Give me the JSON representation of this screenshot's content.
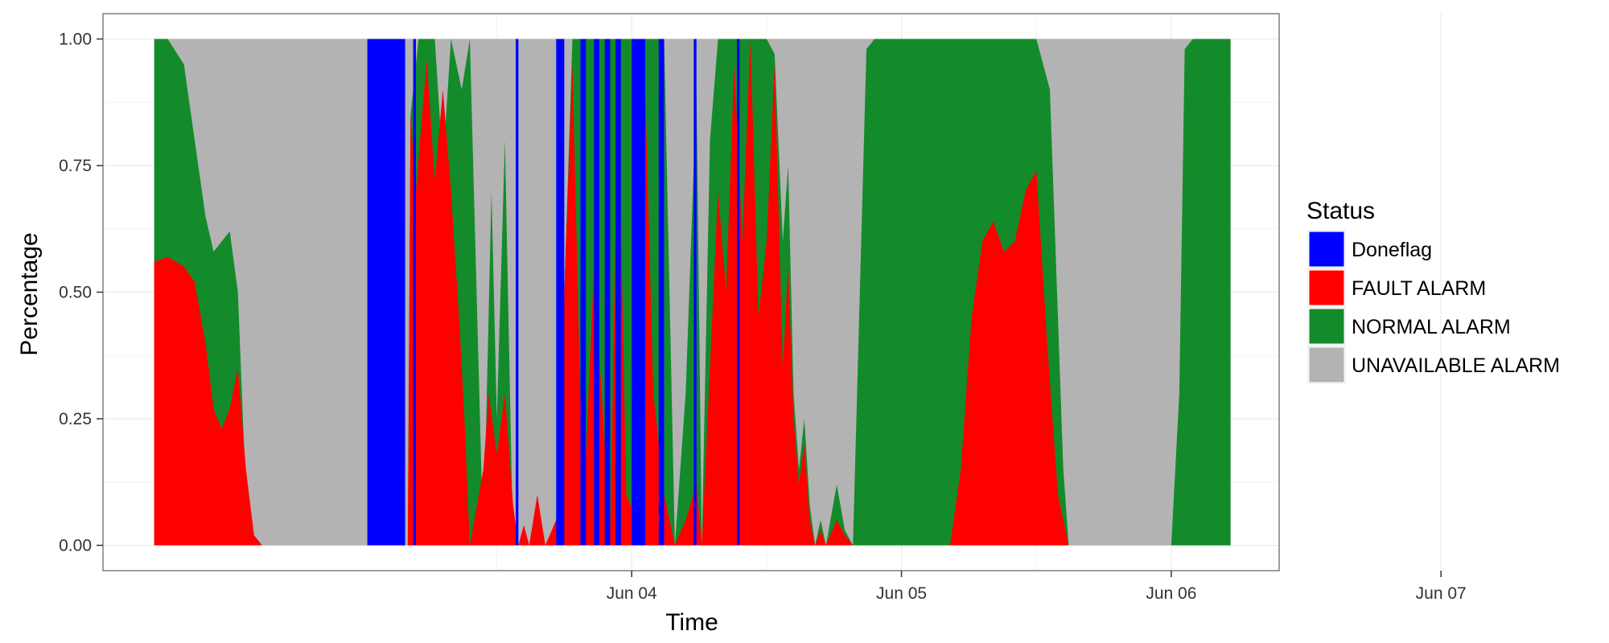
{
  "chart_data": {
    "type": "area",
    "stacked": true,
    "normalized": true,
    "xlabel": "Time",
    "ylabel": "Percentage",
    "x_tick_labels": [
      "Jun 04",
      "Jun 05",
      "Jun 06",
      "Jun 07"
    ],
    "x_ticks_day": [
      1,
      2,
      3,
      4
    ],
    "x_range_day": [
      -0.96,
      3.4
    ],
    "y_ticks": [
      0,
      0.25,
      0.5,
      0.75,
      1
    ],
    "y_tick_labels": [
      "0.00",
      "0.25",
      "0.50",
      "0.75",
      "1.00"
    ],
    "ylim": [
      -0.05,
      1.05
    ],
    "grid": true,
    "legend": {
      "title": "Status",
      "placement": "right",
      "entries": [
        "Doneflag",
        "FAULT ALARM",
        "NORMAL ALARM",
        "UNAVAILABLE ALARM"
      ]
    },
    "series_colors": {
      "Doneflag": "#0000ff",
      "FAULT ALARM": "#ff0000",
      "NORMAL ALARM": "#138b2a",
      "UNAVAILABLE ALARM": "#b3b3b3"
    },
    "series_boundaries": {
      "fault_top": [
        [
          -0.77,
          0.56
        ],
        [
          -0.72,
          0.57
        ],
        [
          -0.66,
          0.55
        ],
        [
          -0.62,
          0.52
        ],
        [
          -0.58,
          0.4
        ],
        [
          -0.55,
          0.27
        ],
        [
          -0.52,
          0.23
        ],
        [
          -0.49,
          0.27
        ],
        [
          -0.46,
          0.35
        ],
        [
          -0.43,
          0.15
        ],
        [
          -0.4,
          0.02
        ],
        [
          -0.37,
          0.0
        ],
        [
          0.17,
          0.0
        ],
        [
          0.18,
          0.85
        ],
        [
          0.2,
          0.7
        ],
        [
          0.24,
          0.96
        ],
        [
          0.27,
          0.72
        ],
        [
          0.3,
          0.9
        ],
        [
          0.33,
          0.7
        ],
        [
          0.36,
          0.45
        ],
        [
          0.38,
          0.25
        ],
        [
          0.4,
          0.0
        ],
        [
          0.45,
          0.15
        ],
        [
          0.47,
          0.3
        ],
        [
          0.5,
          0.18
        ],
        [
          0.53,
          0.3
        ],
        [
          0.56,
          0.08
        ],
        [
          0.58,
          0.0
        ],
        [
          0.6,
          0.04
        ],
        [
          0.62,
          0.0
        ],
        [
          0.65,
          0.1
        ],
        [
          0.68,
          0.0
        ],
        [
          0.72,
          0.05
        ],
        [
          0.78,
          0.95
        ],
        [
          0.82,
          0.05
        ],
        [
          0.86,
          0.55
        ],
        [
          0.92,
          0.02
        ],
        [
          0.95,
          0.9
        ],
        [
          0.98,
          0.1
        ],
        [
          1.02,
          0.05
        ],
        [
          1.05,
          0.9
        ],
        [
          1.08,
          0.3
        ],
        [
          1.12,
          0.1
        ],
        [
          1.16,
          0.0
        ],
        [
          1.2,
          0.05
        ],
        [
          1.24,
          0.12
        ],
        [
          1.26,
          0.0
        ],
        [
          1.29,
          0.35
        ],
        [
          1.32,
          0.7
        ],
        [
          1.35,
          0.5
        ],
        [
          1.38,
          0.95
        ],
        [
          1.41,
          0.6
        ],
        [
          1.44,
          1.0
        ],
        [
          1.47,
          0.45
        ],
        [
          1.5,
          0.6
        ],
        [
          1.53,
          0.95
        ],
        [
          1.56,
          0.35
        ],
        [
          1.58,
          0.55
        ],
        [
          1.6,
          0.25
        ],
        [
          1.62,
          0.12
        ],
        [
          1.64,
          0.2
        ],
        [
          1.66,
          0.05
        ],
        [
          1.68,
          0.0
        ],
        [
          1.7,
          0.03
        ],
        [
          1.72,
          0.0
        ],
        [
          1.76,
          0.05
        ],
        [
          1.79,
          0.02
        ],
        [
          1.82,
          0.0
        ],
        [
          2.18,
          0.0
        ],
        [
          2.22,
          0.15
        ],
        [
          2.26,
          0.45
        ],
        [
          2.3,
          0.6
        ],
        [
          2.34,
          0.64
        ],
        [
          2.38,
          0.58
        ],
        [
          2.42,
          0.6
        ],
        [
          2.46,
          0.7
        ],
        [
          2.5,
          0.74
        ],
        [
          2.54,
          0.4
        ],
        [
          2.58,
          0.1
        ],
        [
          2.62,
          0.0
        ],
        [
          3.22,
          0.0
        ]
      ],
      "normal_top": [
        [
          -0.77,
          1.0
        ],
        [
          -0.72,
          1.0
        ],
        [
          -0.66,
          0.95
        ],
        [
          -0.62,
          0.8
        ],
        [
          -0.58,
          0.65
        ],
        [
          -0.55,
          0.58
        ],
        [
          -0.52,
          0.6
        ],
        [
          -0.49,
          0.62
        ],
        [
          -0.46,
          0.5
        ],
        [
          -0.43,
          0.1
        ],
        [
          -0.4,
          0.0
        ],
        [
          0.17,
          0.0
        ],
        [
          0.18,
          0.85
        ],
        [
          0.21,
          1.0
        ],
        [
          0.27,
          1.0
        ],
        [
          0.3,
          0.75
        ],
        [
          0.33,
          1.0
        ],
        [
          0.37,
          0.9
        ],
        [
          0.4,
          1.0
        ],
        [
          0.45,
          0.0
        ],
        [
          0.48,
          0.7
        ],
        [
          0.5,
          0.25
        ],
        [
          0.53,
          0.8
        ],
        [
          0.56,
          0.0
        ],
        [
          0.62,
          0.0
        ],
        [
          0.72,
          0.0
        ],
        [
          0.78,
          1.0
        ],
        [
          0.85,
          1.0
        ],
        [
          0.92,
          1.0
        ],
        [
          1.0,
          1.0
        ],
        [
          1.08,
          1.0
        ],
        [
          1.12,
          1.0
        ],
        [
          1.16,
          0.0
        ],
        [
          1.2,
          0.3
        ],
        [
          1.24,
          0.9
        ],
        [
          1.26,
          0.0
        ],
        [
          1.29,
          0.8
        ],
        [
          1.32,
          1.0
        ],
        [
          1.5,
          1.0
        ],
        [
          1.53,
          0.97
        ],
        [
          1.56,
          0.6
        ],
        [
          1.58,
          0.75
        ],
        [
          1.6,
          0.3
        ],
        [
          1.62,
          0.15
        ],
        [
          1.64,
          0.25
        ],
        [
          1.66,
          0.08
        ],
        [
          1.68,
          0.0
        ],
        [
          1.7,
          0.05
        ],
        [
          1.72,
          0.0
        ],
        [
          1.76,
          0.12
        ],
        [
          1.79,
          0.03
        ],
        [
          1.82,
          0.0
        ],
        [
          1.87,
          0.98
        ],
        [
          1.9,
          1.0
        ],
        [
          2.5,
          1.0
        ],
        [
          2.55,
          0.9
        ],
        [
          2.6,
          0.15
        ],
        [
          2.62,
          0.0
        ],
        [
          3.0,
          0.0
        ],
        [
          3.03,
          0.3
        ],
        [
          3.05,
          0.98
        ],
        [
          3.08,
          1.0
        ],
        [
          3.22,
          1.0
        ]
      ],
      "done_intervals": [
        [
          0.02,
          0.16
        ],
        [
          0.19,
          0.2
        ],
        [
          0.57,
          0.58
        ],
        [
          0.72,
          0.75
        ],
        [
          0.81,
          0.83
        ],
        [
          0.86,
          0.88
        ],
        [
          0.9,
          0.92
        ],
        [
          0.94,
          0.96
        ],
        [
          1.0,
          1.05
        ],
        [
          1.1,
          1.12
        ],
        [
          1.23,
          1.24
        ],
        [
          1.39,
          1.4
        ]
      ],
      "unavailable_span": [
        -0.77,
        3.22
      ]
    }
  }
}
